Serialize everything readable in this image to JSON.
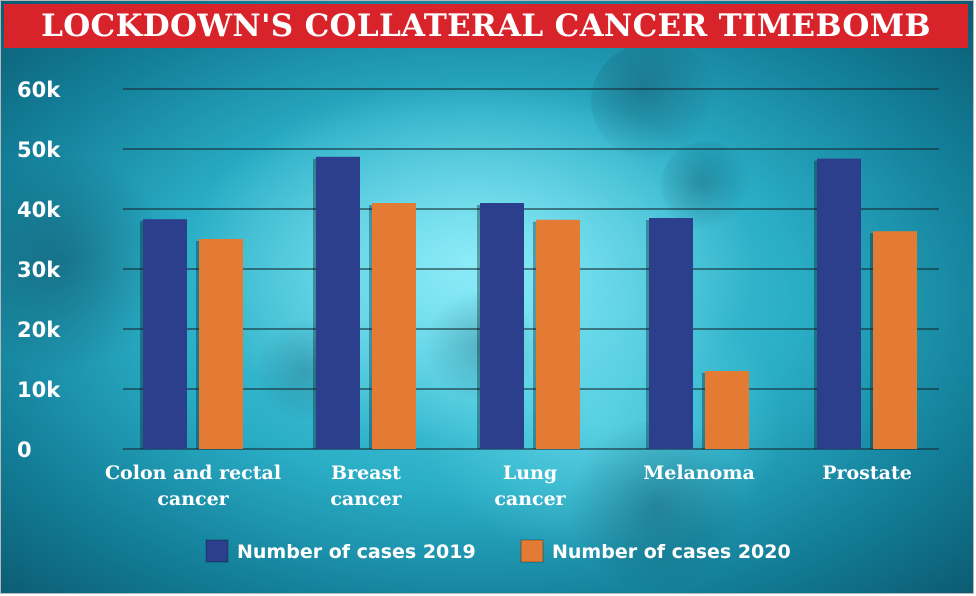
{
  "header": {
    "title": "LOCKDOWN'S COLLATERAL CANCER TIMEBOMB"
  },
  "colors": {
    "series_2019": "#2b3f8c",
    "series_2020": "#e37b35",
    "title_bg": "#d8232a"
  },
  "chart_data": {
    "type": "bar",
    "title": "LOCKDOWN'S COLLATERAL CANCER TIMEBOMB",
    "categories": [
      [
        "Colon and rectal",
        "cancer"
      ],
      [
        "Breast",
        "cancer"
      ],
      [
        "Lung",
        "cancer"
      ],
      [
        "Melanoma"
      ],
      [
        "Prostate"
      ]
    ],
    "series": [
      {
        "name": "Number of cases 2019",
        "values": [
          38300,
          48700,
          41000,
          38500,
          48400
        ]
      },
      {
        "name": "Number of cases 2020",
        "values": [
          35000,
          41000,
          38200,
          13000,
          36300
        ]
      }
    ],
    "yticks": [
      "0",
      "10k",
      "20k",
      "30k",
      "40k",
      "50k",
      "60k"
    ],
    "ylim": [
      0,
      60000
    ],
    "grid": true,
    "legend": "bottom"
  }
}
